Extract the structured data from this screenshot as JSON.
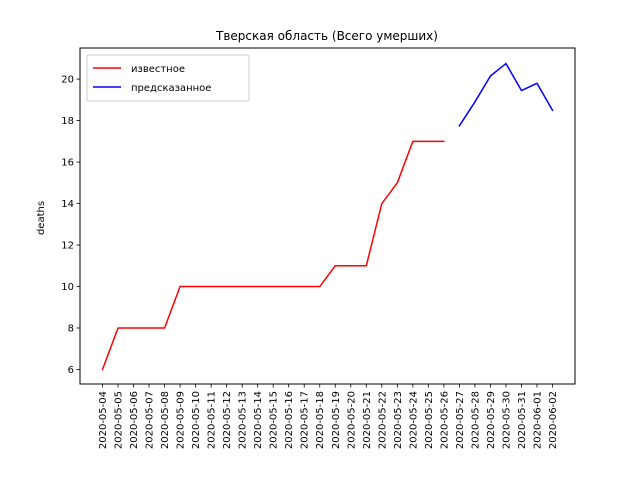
{
  "chart_data": {
    "type": "line",
    "title": "Тверская область (Всего умерших)",
    "xlabel": "",
    "ylabel": "deaths",
    "ylim": [
      5.3,
      21.5
    ],
    "yticks": [
      6,
      8,
      10,
      12,
      14,
      16,
      18,
      20
    ],
    "grid": false,
    "legend_position": "upper-left",
    "x": [
      "2020-05-04",
      "2020-05-05",
      "2020-05-06",
      "2020-05-07",
      "2020-05-08",
      "2020-05-09",
      "2020-05-10",
      "2020-05-11",
      "2020-05-12",
      "2020-05-13",
      "2020-05-14",
      "2020-05-15",
      "2020-05-16",
      "2020-05-17",
      "2020-05-18",
      "2020-05-19",
      "2020-05-20",
      "2020-05-21",
      "2020-05-22",
      "2020-05-23",
      "2020-05-24",
      "2020-05-25",
      "2020-05-26",
      "2020-05-27",
      "2020-05-28",
      "2020-05-29",
      "2020-05-30",
      "2020-05-31",
      "2020-06-01",
      "2020-06-02"
    ],
    "series": [
      {
        "name": "известное",
        "color": "#ff0000",
        "x": [
          "2020-05-04",
          "2020-05-05",
          "2020-05-06",
          "2020-05-07",
          "2020-05-08",
          "2020-05-09",
          "2020-05-10",
          "2020-05-11",
          "2020-05-12",
          "2020-05-13",
          "2020-05-14",
          "2020-05-15",
          "2020-05-16",
          "2020-05-17",
          "2020-05-18",
          "2020-05-19",
          "2020-05-20",
          "2020-05-21",
          "2020-05-22",
          "2020-05-23",
          "2020-05-24",
          "2020-05-25",
          "2020-05-26"
        ],
        "values": [
          6,
          8,
          8,
          8,
          8,
          10,
          10,
          10,
          10,
          10,
          10,
          10,
          10,
          10,
          10,
          11,
          11,
          11,
          14,
          15,
          17,
          17,
          17
        ]
      },
      {
        "name": "предсказанное",
        "color": "#0000ff",
        "x": [
          "2020-05-27",
          "2020-05-28",
          "2020-05-29",
          "2020-05-30",
          "2020-05-31",
          "2020-06-01",
          "2020-06-02"
        ],
        "values": [
          17.75,
          18.9,
          20.15,
          20.75,
          19.45,
          19.8,
          18.5
        ]
      }
    ]
  }
}
